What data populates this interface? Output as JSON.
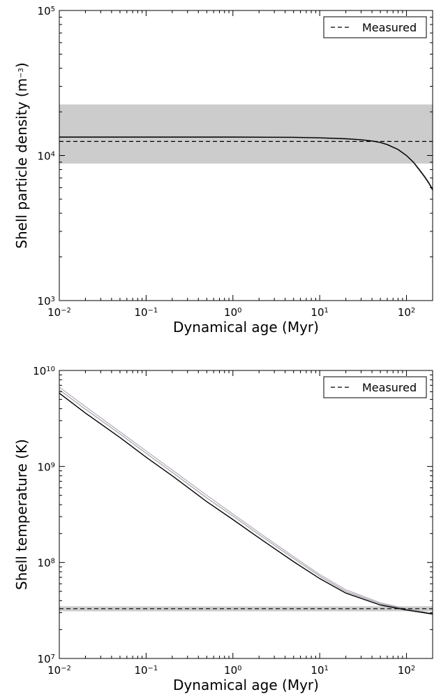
{
  "chart_data": [
    {
      "type": "line",
      "xlabel": "Dynamical age (Myr)",
      "ylabel": "Shell particle density (m",
      "ylabel_exponent": "−3",
      "ylabel_close": ")",
      "xscale": "log",
      "yscale": "log",
      "xlim": [
        0.01,
        200
      ],
      "ylim": [
        1000,
        100000
      ],
      "x_ticks": [
        {
          "value": 0.01,
          "base": "10",
          "exp": "−2"
        },
        {
          "value": 0.1,
          "base": "10",
          "exp": "−1"
        },
        {
          "value": 1,
          "base": "10",
          "exp": "0"
        },
        {
          "value": 10,
          "base": "10",
          "exp": "1"
        },
        {
          "value": 100,
          "base": "10",
          "exp": "2"
        }
      ],
      "y_ticks": [
        {
          "value": 1000,
          "base": "10",
          "exp": "3"
        },
        {
          "value": 10000,
          "base": "10",
          "exp": "4"
        },
        {
          "value": 100000,
          "base": "10",
          "exp": "5"
        }
      ],
      "legend": {
        "label": "Measured",
        "placement": "top-right"
      },
      "measured_value": 12500,
      "measured_band": [
        8800,
        22500
      ],
      "band_color": "#cccccc",
      "x": [
        0.01,
        0.1,
        1,
        5,
        10,
        20,
        30,
        40,
        50,
        60,
        80,
        100,
        120,
        140,
        160,
        180,
        200
      ],
      "series": [
        {
          "color": "#000000",
          "values": [
            13400,
            13400,
            13400,
            13350,
            13250,
            13050,
            12850,
            12600,
            12300,
            11900,
            11000,
            10000,
            9000,
            8000,
            7200,
            6500,
            5800
          ]
        },
        {
          "color": "#bbbbbb",
          "values": [
            13500,
            13500,
            13500,
            13450,
            13350,
            13150,
            12950,
            12700,
            12400,
            12000,
            11100,
            10100,
            9100,
            8100,
            7300,
            6600,
            5900
          ]
        },
        {
          "color": "#c7b6c2",
          "values": [
            13300,
            13300,
            13300,
            13250,
            13150,
            12950,
            12750,
            12500,
            12200,
            11800,
            10900,
            9900,
            8900,
            7900,
            7100,
            6400,
            5700
          ]
        }
      ]
    },
    {
      "type": "line",
      "xlabel": "Dynamical age (Myr)",
      "ylabel": "Shell temperature (K)",
      "xscale": "log",
      "yscale": "log",
      "xlim": [
        0.01,
        200
      ],
      "ylim": [
        10000000,
        10000000000
      ],
      "x_ticks": [
        {
          "value": 0.01,
          "base": "10",
          "exp": "−2"
        },
        {
          "value": 0.1,
          "base": "10",
          "exp": "−1"
        },
        {
          "value": 1,
          "base": "10",
          "exp": "0"
        },
        {
          "value": 10,
          "base": "10",
          "exp": "1"
        },
        {
          "value": 100,
          "base": "10",
          "exp": "2"
        }
      ],
      "y_ticks": [
        {
          "value": 10000000,
          "base": "10",
          "exp": "7"
        },
        {
          "value": 100000000,
          "base": "10",
          "exp": "8"
        },
        {
          "value": 1000000000,
          "base": "10",
          "exp": "9"
        },
        {
          "value": 10000000000,
          "base": "10",
          "exp": "10"
        }
      ],
      "legend": {
        "label": "Measured",
        "placement": "top-right"
      },
      "measured_value": 33000000,
      "measured_band": [
        31000000,
        35000000
      ],
      "band_color": "#cccccc",
      "x": [
        0.01,
        0.02,
        0.05,
        0.1,
        0.2,
        0.5,
        1,
        2,
        5,
        10,
        20,
        50,
        100,
        200
      ],
      "series": [
        {
          "color": "#000000",
          "values": [
            5800000000,
            3600000000,
            2000000000,
            1250000000,
            800000000,
            430000000,
            280000000,
            180000000,
            102000000,
            68000000,
            48000000,
            36000000,
            32000000,
            29000000
          ]
        },
        {
          "color": "#9a9a9a",
          "values": [
            6300000000,
            3950000000,
            2180000000,
            1370000000,
            870000000,
            470000000,
            305000000,
            195000000,
            110000000,
            72000000,
            50000000,
            37000000,
            32500000,
            29200000
          ]
        },
        {
          "color": "#b0a0b8",
          "values": [
            6700000000,
            4200000000,
            2300000000,
            1450000000,
            920000000,
            500000000,
            320000000,
            205000000,
            115000000,
            75000000,
            52000000,
            38000000,
            33000000,
            29400000
          ]
        }
      ]
    }
  ]
}
